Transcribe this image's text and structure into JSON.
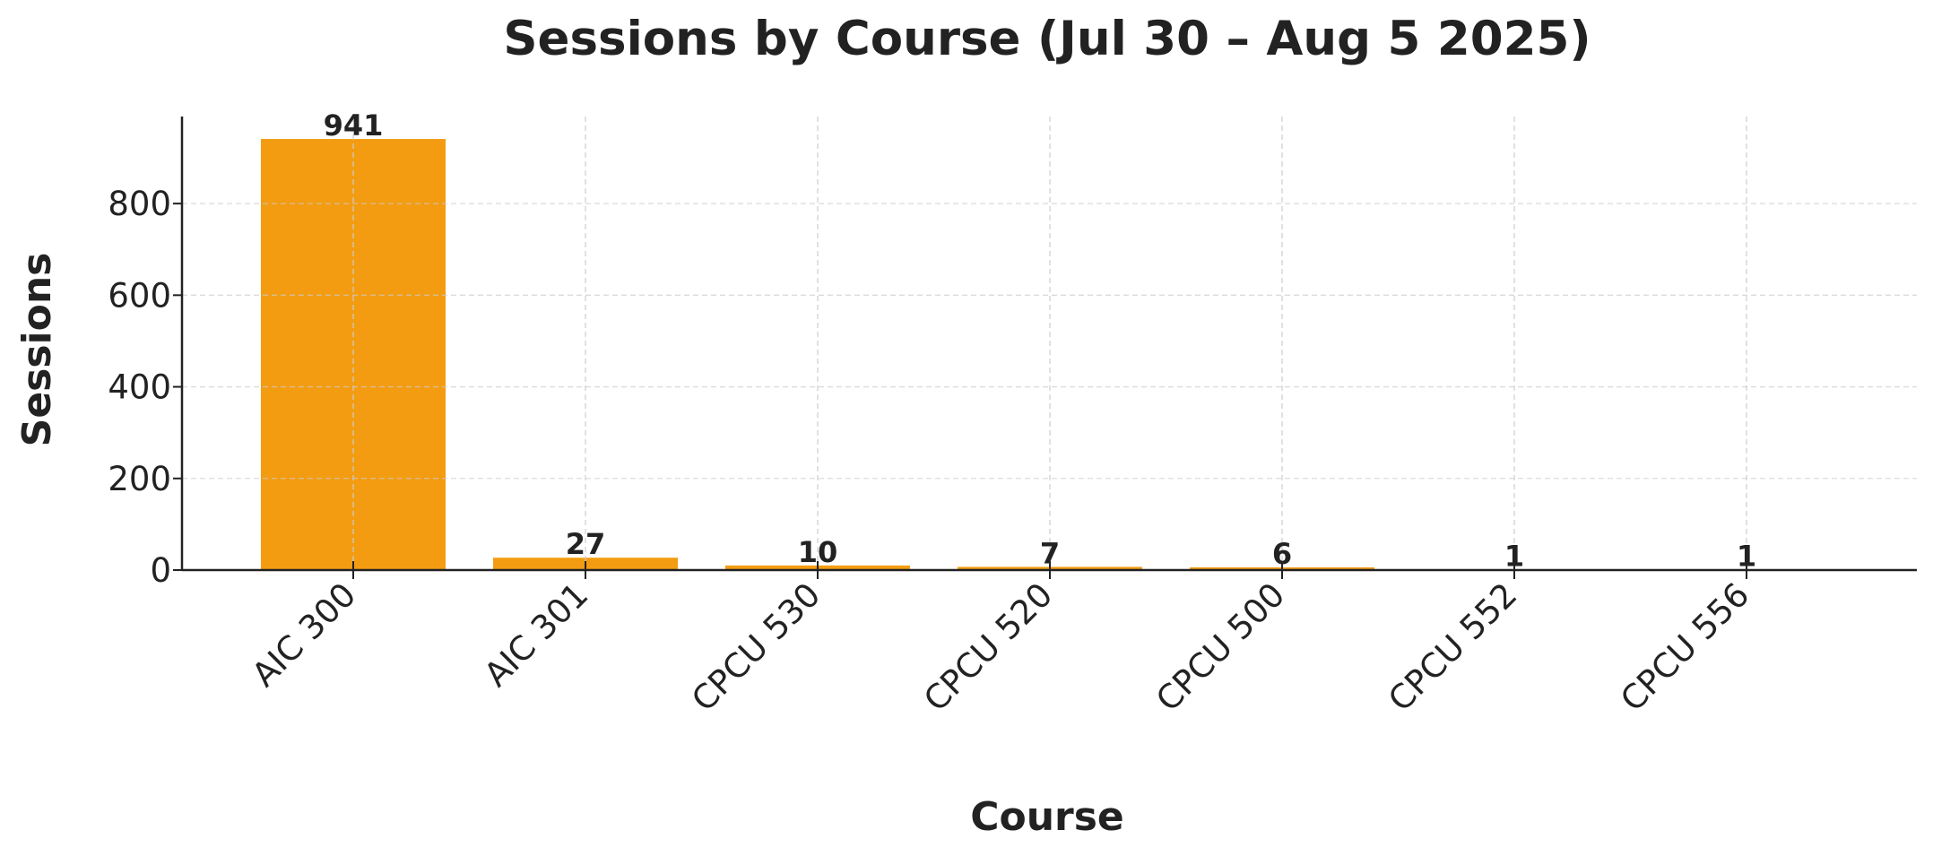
{
  "chart_data": {
    "type": "bar",
    "title": "Sessions by Course (Jul 30 – Aug 5 2025)",
    "xlabel": "Course",
    "ylabel": "Sessions",
    "categories": [
      "AIC 300",
      "AIC 301",
      "CPCU 530",
      "CPCU 520",
      "CPCU 500",
      "CPCU 552",
      "CPCU 556"
    ],
    "values": [
      941,
      27,
      10,
      7,
      6,
      1,
      1
    ],
    "data_labels": [
      "941",
      "27",
      "10",
      "7",
      "6",
      "1",
      "1"
    ],
    "ylim": [
      0,
      990
    ],
    "yticks": [
      0,
      200,
      400,
      600,
      800
    ],
    "ytick_labels": [
      "0",
      "200",
      "400",
      "600",
      "800"
    ],
    "grid": true,
    "colors": {
      "bar": "#F39C12",
      "text": "#222222",
      "axis": "#222222",
      "grid": "#cccccc"
    }
  }
}
